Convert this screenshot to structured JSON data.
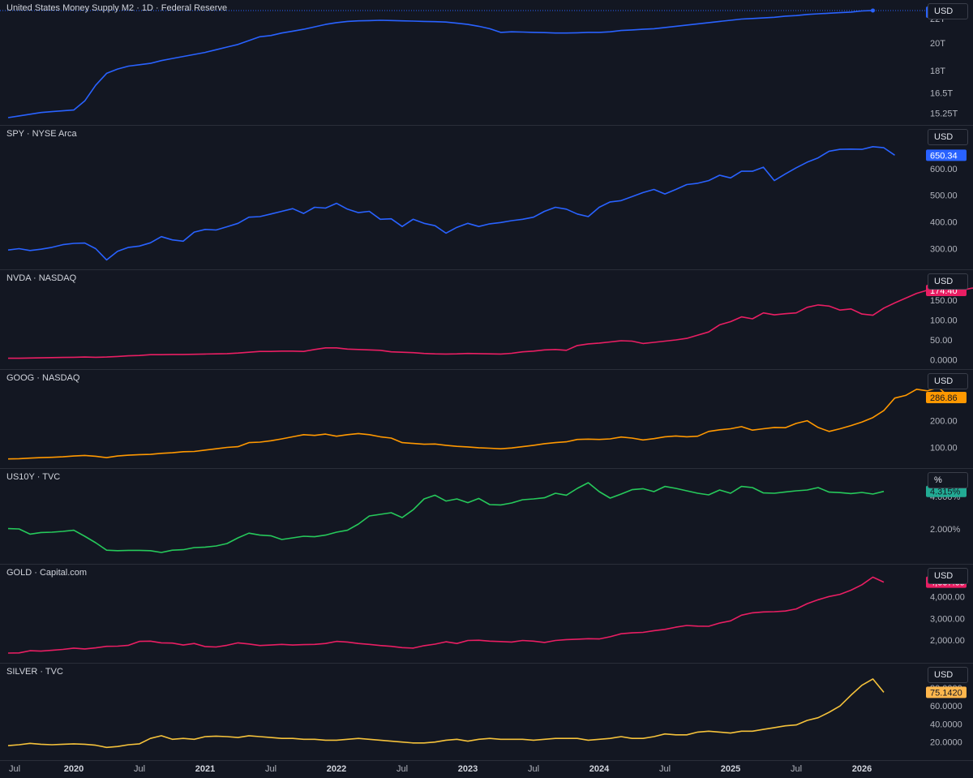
{
  "chart_data": [
    {
      "type": "line",
      "title": "United States Money Supply M2 · 1D · Federal Reserve",
      "unit": "USD",
      "last_value": "22.69T",
      "color": "#2962ff",
      "ylim": [
        15.0,
        22.9
      ],
      "scale": "log",
      "yticks": [
        {
          "v": 15.25,
          "label": "15.25T"
        },
        {
          "v": 16.5,
          "label": "16.5T"
        },
        {
          "v": 18,
          "label": "18T"
        },
        {
          "v": 20,
          "label": "20T"
        },
        {
          "v": 22,
          "label": "22T"
        }
      ],
      "x_start": "2019-07",
      "x_step_months": 1,
      "values": [
        15.0,
        15.1,
        15.2,
        15.3,
        15.35,
        15.4,
        15.45,
        16.0,
        17.0,
        17.8,
        18.1,
        18.3,
        18.4,
        18.5,
        18.7,
        18.85,
        19.0,
        19.15,
        19.3,
        19.5,
        19.7,
        19.9,
        20.2,
        20.5,
        20.6,
        20.8,
        20.95,
        21.1,
        21.3,
        21.5,
        21.65,
        21.75,
        21.8,
        21.82,
        21.85,
        21.83,
        21.8,
        21.78,
        21.75,
        21.73,
        21.7,
        21.6,
        21.5,
        21.35,
        21.15,
        20.85,
        20.9,
        20.88,
        20.85,
        20.83,
        20.8,
        20.8,
        20.82,
        20.85,
        20.85,
        20.9,
        21.0,
        21.05,
        21.1,
        21.15,
        21.25,
        21.35,
        21.45,
        21.55,
        21.65,
        21.75,
        21.85,
        21.95,
        22.0,
        22.05,
        22.1,
        22.2,
        22.25,
        22.35,
        22.4,
        22.45,
        22.5,
        22.55,
        22.65,
        22.69
      ]
    },
    {
      "type": "line",
      "title": "SPY · NYSE Arca",
      "unit": "USD",
      "last_value": "650.34",
      "color": "#2962ff",
      "ylim": [
        250,
        730
      ],
      "yticks": [
        {
          "v": 300,
          "label": "300.00"
        },
        {
          "v": 400,
          "label": "400.00"
        },
        {
          "v": 500,
          "label": "500.00"
        },
        {
          "v": 600,
          "label": "600.00"
        }
      ],
      "x_start": "2019-07",
      "x_step_months": 1,
      "values": [
        295,
        300,
        293,
        298,
        305,
        315,
        320,
        321,
        300,
        258,
        290,
        305,
        310,
        322,
        345,
        333,
        328,
        362,
        372,
        370,
        382,
        395,
        418,
        420,
        430,
        440,
        450,
        432,
        455,
        452,
        470,
        448,
        435,
        440,
        410,
        412,
        383,
        410,
        395,
        386,
        358,
        380,
        395,
        383,
        393,
        398,
        405,
        410,
        418,
        440,
        455,
        448,
        430,
        420,
        455,
        475,
        480,
        495,
        510,
        522,
        505,
        522,
        540,
        545,
        555,
        575,
        565,
        590,
        590,
        605,
        555,
        580,
        603,
        624,
        640,
        665,
        672,
        673,
        672,
        682,
        678,
        650
      ]
    },
    {
      "type": "line",
      "title": "NVDA · NASDAQ",
      "unit": "USD",
      "last_value": "174.40",
      "color": "#e91e63",
      "ylim": [
        -5,
        205
      ],
      "yticks": [
        {
          "v": 0,
          "label": "0.0000"
        },
        {
          "v": 50,
          "label": "50.00"
        },
        {
          "v": 100,
          "label": "100.00"
        },
        {
          "v": 150,
          "label": "150.00"
        }
      ],
      "x_start": "2019-07",
      "x_step_months": 1,
      "values": [
        4,
        4,
        4.5,
        5,
        5.5,
        6,
        6.5,
        7,
        6.5,
        7,
        8.5,
        10,
        11,
        13,
        13,
        13.5,
        13.5,
        14,
        14.5,
        15,
        15.5,
        17,
        19,
        21,
        21,
        22,
        22,
        21,
        26,
        30,
        30,
        27,
        26,
        25,
        24,
        20,
        19,
        18,
        16,
        15,
        14.5,
        15,
        16,
        15.5,
        15,
        14.5,
        16.5,
        20,
        22,
        25,
        26,
        24,
        36,
        40,
        42,
        45,
        48,
        47,
        41,
        44,
        47,
        50,
        54,
        62,
        70,
        88,
        96,
        108,
        103,
        118,
        113,
        116,
        118,
        132,
        138,
        135,
        125,
        128,
        115,
        112,
        130,
        143,
        155,
        167,
        175,
        176,
        186,
        174,
        180,
        183,
        175,
        174.4
      ]
    },
    {
      "type": "line",
      "title": "GOOG · NASDAQ",
      "unit": "USD",
      "last_value": "286.86",
      "color": "#ff9800",
      "ylim": [
        50,
        360
      ],
      "yticks": [
        {
          "v": 100,
          "label": "100.00"
        },
        {
          "v": 200,
          "label": "200.00"
        }
      ],
      "x_start": "2019-07",
      "x_step_months": 1,
      "values": [
        57,
        58,
        60,
        62,
        63,
        65,
        68,
        70,
        67,
        62,
        68,
        71,
        73,
        74,
        78,
        80,
        84,
        85,
        90,
        95,
        100,
        103,
        118,
        120,
        125,
        132,
        140,
        148,
        145,
        150,
        142,
        148,
        152,
        148,
        140,
        135,
        118,
        115,
        112,
        113,
        108,
        104,
        102,
        99,
        97,
        95,
        98,
        103,
        108,
        114,
        118,
        121,
        130,
        131,
        130,
        132,
        139,
        135,
        128,
        133,
        140,
        143,
        140,
        142,
        160,
        166,
        170,
        178,
        165,
        170,
        175,
        174,
        190,
        200,
        175,
        160,
        170,
        182,
        195,
        212,
        238,
        285,
        295,
        318,
        312,
        325,
        287
      ]
    },
    {
      "type": "line",
      "title": "US10Y · TVC",
      "unit": "%",
      "last_value": "4.315%",
      "color": "#22ab94",
      "line_color": "#26c95b",
      "ylim": [
        0.3,
        5.2
      ],
      "yticks": [
        {
          "v": 2.0,
          "label": "2.000%"
        },
        {
          "v": 4.0,
          "label": "4.000%"
        }
      ],
      "x_start": "2019-07",
      "x_step_months": 1,
      "values": [
        2.02,
        2.0,
        1.68,
        1.78,
        1.8,
        1.85,
        1.92,
        1.55,
        1.15,
        0.69,
        0.66,
        0.68,
        0.68,
        0.66,
        0.55,
        0.69,
        0.72,
        0.85,
        0.88,
        0.95,
        1.1,
        1.45,
        1.74,
        1.62,
        1.58,
        1.35,
        1.45,
        1.55,
        1.52,
        1.62,
        1.8,
        1.92,
        2.3,
        2.8,
        2.9,
        3.0,
        2.7,
        3.18,
        3.85,
        4.08,
        3.72,
        3.85,
        3.62,
        3.88,
        3.5,
        3.48,
        3.6,
        3.8,
        3.85,
        3.92,
        4.2,
        4.08,
        4.5,
        4.85,
        4.3,
        3.9,
        4.15,
        4.42,
        4.48,
        4.3,
        4.62,
        4.5,
        4.35,
        4.2,
        4.1,
        4.4,
        4.2,
        4.62,
        4.55,
        4.22,
        4.2,
        4.28,
        4.35,
        4.4,
        4.55,
        4.27,
        4.24,
        4.18,
        4.25,
        4.15,
        4.315
      ]
    },
    {
      "type": "line",
      "title": "GOLD · Capital.com",
      "unit": "USD",
      "last_value": "4,667.09",
      "color": "#e91e63",
      "ylim": [
        1300,
        5100
      ],
      "yticks": [
        {
          "v": 2000,
          "label": "2,000.00"
        },
        {
          "v": 3000,
          "label": "3,000.00"
        },
        {
          "v": 4000,
          "label": "4,000.00"
        }
      ],
      "x_start": "2019-07",
      "x_step_months": 1,
      "values": [
        1410,
        1420,
        1520,
        1500,
        1540,
        1580,
        1640,
        1600,
        1650,
        1720,
        1730,
        1770,
        1950,
        1960,
        1880,
        1870,
        1780,
        1850,
        1710,
        1690,
        1770,
        1880,
        1830,
        1760,
        1780,
        1810,
        1780,
        1800,
        1810,
        1850,
        1950,
        1920,
        1850,
        1810,
        1760,
        1720,
        1660,
        1640,
        1750,
        1820,
        1930,
        1850,
        1990,
        2000,
        1960,
        1940,
        1920,
        1990,
        1960,
        1900,
        1990,
        2030,
        2050,
        2070,
        2060,
        2160,
        2300,
        2340,
        2360,
        2440,
        2500,
        2600,
        2680,
        2650,
        2640,
        2790,
        2890,
        3150,
        3260,
        3300,
        3310,
        3340,
        3440,
        3680,
        3860,
        4010,
        4110,
        4300,
        4550,
        4900,
        4667
      ]
    },
    {
      "type": "line",
      "title": "SILVER · TVC",
      "unit": "USD",
      "last_value": "75.1420",
      "color": "#ffb74d",
      "line_color": "#f5c23b",
      "ylim": [
        8,
        98
      ],
      "yticks": [
        {
          "v": 20,
          "label": "20.0000"
        },
        {
          "v": 40,
          "label": "40.0000"
        },
        {
          "v": 60,
          "label": "60.0000"
        },
        {
          "v": 80,
          "label": "80.0000"
        }
      ],
      "x_start": "2019-07",
      "x_step_months": 1,
      "values": [
        16,
        17,
        18.5,
        17.5,
        17,
        17.5,
        18,
        17.5,
        16.5,
        14,
        15,
        17,
        18,
        24,
        27,
        23,
        24,
        23,
        26,
        26.5,
        26,
        25,
        27,
        26,
        25,
        24,
        24,
        23,
        23,
        22,
        22,
        23,
        24,
        23,
        22,
        21,
        20,
        19,
        19,
        20,
        22,
        23,
        21,
        23,
        24,
        23,
        23,
        23,
        22,
        23,
        24,
        24,
        24,
        22,
        23,
        24,
        26,
        24,
        24,
        26,
        29,
        28,
        28,
        31,
        32,
        31,
        30,
        32,
        32,
        34,
        36,
        38,
        39,
        44,
        47,
        53,
        60,
        72,
        83,
        90,
        75.14
      ]
    }
  ],
  "x_axis": [
    {
      "label": "Jul",
      "t": "2019-07",
      "year": false
    },
    {
      "label": "2020",
      "t": "2020-01",
      "year": true
    },
    {
      "label": "Jul",
      "t": "2020-07",
      "year": false
    },
    {
      "label": "2021",
      "t": "2021-01",
      "year": true
    },
    {
      "label": "Jul",
      "t": "2021-07",
      "year": false
    },
    {
      "label": "2022",
      "t": "2022-01",
      "year": true
    },
    {
      "label": "Jul",
      "t": "2022-07",
      "year": false
    },
    {
      "label": "2023",
      "t": "2023-01",
      "year": true
    },
    {
      "label": "Jul",
      "t": "2023-07",
      "year": false
    },
    {
      "label": "2024",
      "t": "2024-01",
      "year": true
    },
    {
      "label": "Jul",
      "t": "2024-07",
      "year": false
    },
    {
      "label": "2025",
      "t": "2025-01",
      "year": true
    },
    {
      "label": "Jul",
      "t": "2025-07",
      "year": false
    },
    {
      "label": "2026",
      "t": "2026-01",
      "year": true
    }
  ]
}
